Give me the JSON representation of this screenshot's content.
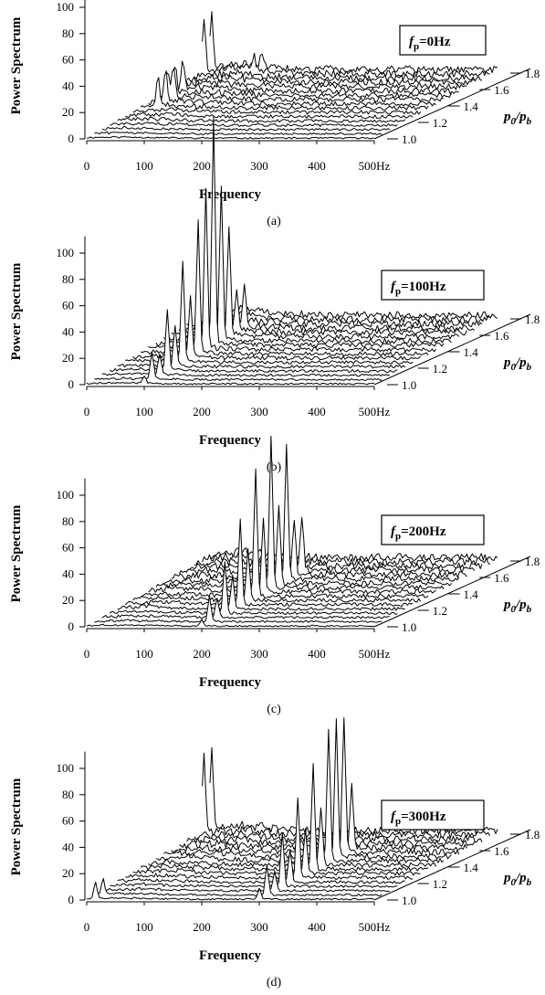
{
  "chart_data": [
    {
      "type": "line",
      "panel_label": "(a)",
      "legend": {
        "symbol": "f",
        "subscript": "p",
        "value": "=0Hz",
        "placement": "top-right"
      },
      "xlabel": "Frequency",
      "ylabel": "Power Spectrum",
      "zlabel": {
        "p0": "p",
        "sub0": "0",
        "slash": "/",
        "pb": "p",
        "subb": "b"
      },
      "x_ticks": [
        "0",
        "100",
        "200",
        "300",
        "400",
        "500Hz"
      ],
      "y_ticks": [
        "0",
        "20",
        "40",
        "60",
        "80",
        "100"
      ],
      "z_ticks": [
        "1.0",
        "1.2",
        "1.4",
        "1.6",
        "1.8"
      ],
      "xlim": [
        0,
        500
      ],
      "ylim": [
        0,
        110
      ],
      "zlim": [
        1.0,
        1.8
      ],
      "series_count": 17,
      "peaks": [
        {
          "z": 1.8,
          "freq": 3,
          "height": 40
        },
        {
          "z": 1.8,
          "freq": 90,
          "height": 10
        },
        {
          "z": 1.4,
          "freq": 30,
          "height": 25
        },
        {
          "z": 1.5,
          "freq": 20,
          "height": 20
        }
      ]
    },
    {
      "type": "line",
      "panel_label": "(b)",
      "legend": {
        "symbol": "f",
        "subscript": "p",
        "value": "=100Hz",
        "placement": "top-right"
      },
      "xlabel": "Frequency",
      "ylabel": "Power Spectrum",
      "zlabel": {
        "p0": "p",
        "sub0": "0",
        "slash": "/",
        "pb": "p",
        "subb": "b"
      },
      "x_ticks": [
        "0",
        "100",
        "200",
        "300",
        "400",
        "500Hz"
      ],
      "y_ticks": [
        "0",
        "20",
        "40",
        "60",
        "80",
        "100"
      ],
      "z_ticks": [
        "1.0",
        "1.2",
        "1.4",
        "1.6",
        "1.8"
      ],
      "xlim": [
        0,
        500
      ],
      "ylim": [
        0,
        110
      ],
      "zlim": [
        1.0,
        1.8
      ],
      "series_count": 17,
      "peaks": [
        {
          "z": 1.0,
          "freq": 100,
          "height": 5
        },
        {
          "z": 1.1,
          "freq": 100,
          "height": 15
        },
        {
          "z": 1.2,
          "freq": 100,
          "height": 30
        },
        {
          "z": 1.3,
          "freq": 100,
          "height": 45
        },
        {
          "z": 1.4,
          "freq": 100,
          "height": 55
        },
        {
          "z": 1.45,
          "freq": 100,
          "height": 65
        },
        {
          "z": 1.5,
          "freq": 100,
          "height": 50
        },
        {
          "z": 1.6,
          "freq": 100,
          "height": 30
        }
      ]
    },
    {
      "type": "line",
      "panel_label": "(c)",
      "legend": {
        "symbol": "f",
        "subscript": "p",
        "value": "=200Hz",
        "placement": "top-right"
      },
      "xlabel": "Frequency",
      "ylabel": "Power Spectrum",
      "zlabel": {
        "p0": "p",
        "sub0": "0",
        "slash": "/",
        "pb": "p",
        "subb": "b"
      },
      "x_ticks": [
        "0",
        "100",
        "200",
        "300",
        "400",
        "500Hz"
      ],
      "y_ticks": [
        "0",
        "20",
        "40",
        "60",
        "80",
        "100"
      ],
      "z_ticks": [
        "1.0",
        "1.2",
        "1.4",
        "1.6",
        "1.8"
      ],
      "xlim": [
        0,
        500
      ],
      "ylim": [
        0,
        110
      ],
      "zlim": [
        1.0,
        1.8
      ],
      "series_count": 17,
      "peaks": [
        {
          "z": 1.0,
          "freq": 200,
          "height": 5
        },
        {
          "z": 1.1,
          "freq": 200,
          "height": 15
        },
        {
          "z": 1.2,
          "freq": 200,
          "height": 25
        },
        {
          "z": 1.3,
          "freq": 200,
          "height": 40
        },
        {
          "z": 1.4,
          "freq": 200,
          "height": 55
        },
        {
          "z": 1.5,
          "freq": 200,
          "height": 60
        },
        {
          "z": 1.6,
          "freq": 200,
          "height": 40
        }
      ]
    },
    {
      "type": "line",
      "panel_label": "(d)",
      "legend": {
        "symbol": "f",
        "subscript": "p",
        "value": "=300Hz",
        "placement": "top-right"
      },
      "xlabel": "Frequency",
      "ylabel": "Power Spectrum",
      "zlabel": {
        "p0": "p",
        "sub0": "0",
        "slash": "/",
        "pb": "p",
        "subb": "b"
      },
      "x_ticks": [
        "0",
        "100",
        "200",
        "300",
        "400",
        "500Hz"
      ],
      "y_ticks": [
        "0",
        "20",
        "40",
        "60",
        "80",
        "100"
      ],
      "z_ticks": [
        "1.0",
        "1.2",
        "1.4",
        "1.6",
        "1.8"
      ],
      "xlim": [
        0,
        500
      ],
      "ylim": [
        0,
        110
      ],
      "zlim": [
        1.0,
        1.8
      ],
      "series_count": 17,
      "peaks": [
        {
          "z": 1.0,
          "freq": 300,
          "height": 8
        },
        {
          "z": 1.1,
          "freq": 300,
          "height": 15
        },
        {
          "z": 1.2,
          "freq": 300,
          "height": 25
        },
        {
          "z": 1.3,
          "freq": 300,
          "height": 35
        },
        {
          "z": 1.4,
          "freq": 300,
          "height": 45
        },
        {
          "z": 1.5,
          "freq": 300,
          "height": 55
        },
        {
          "z": 1.55,
          "freq": 300,
          "height": 48
        },
        {
          "z": 1.8,
          "freq": 3,
          "height": 60
        },
        {
          "z": 1.0,
          "freq": 15,
          "height": 12
        }
      ]
    }
  ]
}
